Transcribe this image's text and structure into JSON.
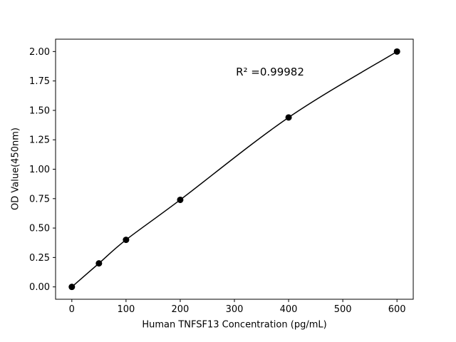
{
  "chart_data": {
    "type": "scatter",
    "title": "",
    "xlabel": "Human TNFSF13 Concentration (pg/mL)",
    "ylabel": "OD Value(450nm)",
    "annotation": "R² =0.99982",
    "x": [
      0,
      50,
      100,
      200,
      400,
      600
    ],
    "y": [
      0.0,
      0.2,
      0.4,
      0.74,
      1.44,
      2.0
    ],
    "x_ticks": [
      0,
      100,
      200,
      300,
      400,
      500,
      600
    ],
    "y_ticks": [
      0.0,
      0.25,
      0.5,
      0.75,
      1.0,
      1.25,
      1.5,
      1.75,
      2.0
    ],
    "xlim": [
      -30,
      630
    ],
    "ylim": [
      -0.105,
      2.105
    ],
    "grid": false,
    "legend": "none",
    "line_color": "#000000",
    "marker_color": "#000000",
    "axis_color": "#000000",
    "background_color": "#ffffff"
  }
}
